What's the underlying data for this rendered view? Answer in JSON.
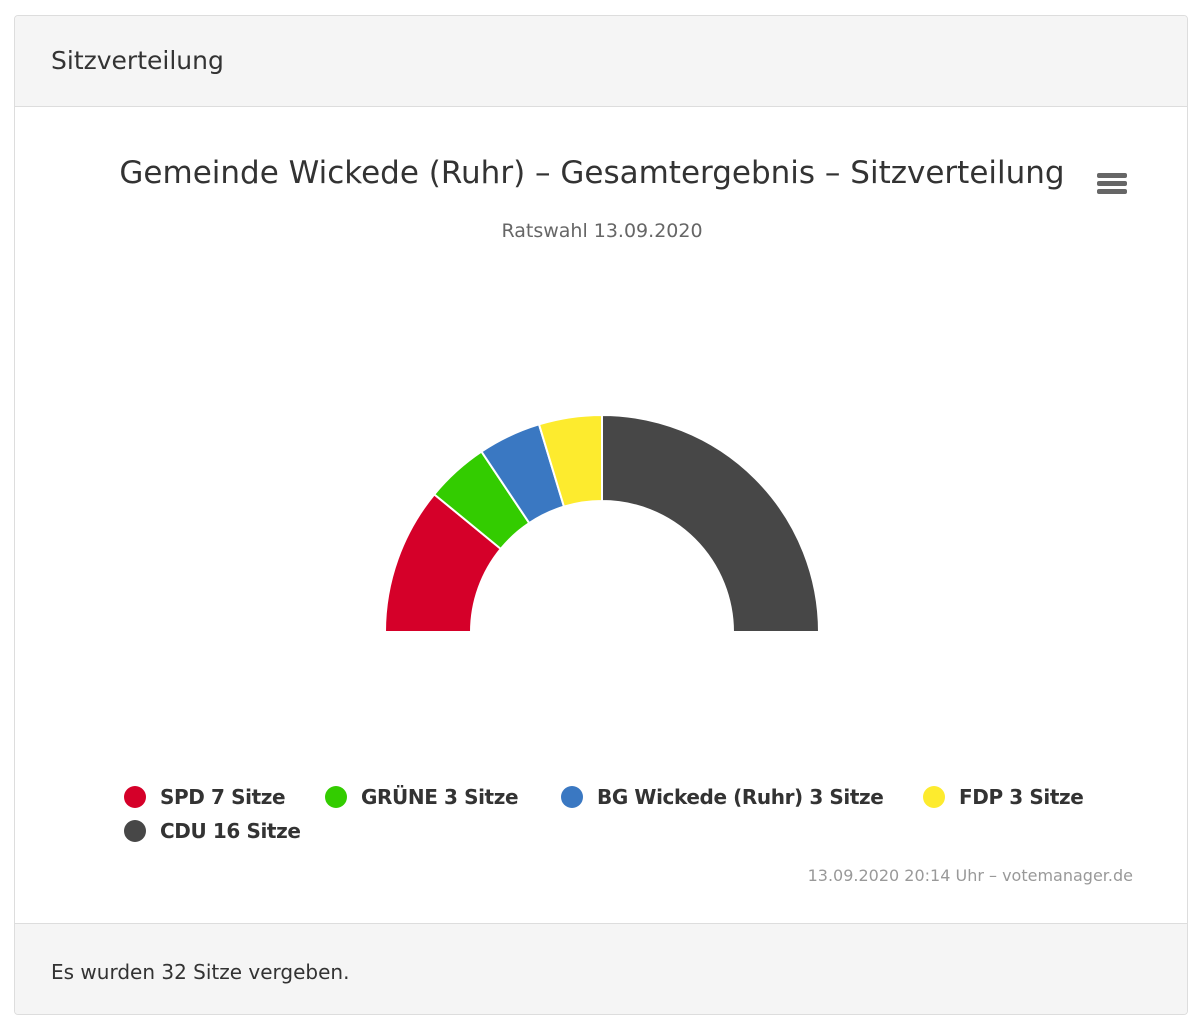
{
  "panel": {
    "heading": "Sitzverteilung",
    "footer": "Es wurden 32 Sitze vergeben."
  },
  "chart_data": {
    "type": "pie",
    "variant": "semicircle-donut",
    "title": "Gemeinde Wickede (Ruhr) – Gesamtergebnis – Sitzverteilung",
    "subtitle": "Ratswahl 13.09.2020",
    "series": [
      {
        "name": "SPD",
        "value": 7,
        "label": "SPD 7 Sitze",
        "color": "#d50029"
      },
      {
        "name": "GRÜNE",
        "value": 3,
        "label": "GRÜNE 3 Sitze",
        "color": "#33cc00"
      },
      {
        "name": "BG Wickede (Ruhr)",
        "value": 3,
        "label": "BG Wickede (Ruhr) 3 Sitze",
        "color": "#3a78c2"
      },
      {
        "name": "FDP",
        "value": 3,
        "label": "FDP 3 Sitze",
        "color": "#fdeb2e"
      },
      {
        "name": "CDU",
        "value": 16,
        "label": "CDU 16 Sitze",
        "color": "#474747"
      }
    ],
    "total": 32,
    "legend_position": "bottom",
    "credits": "13.09.2020 20:14 Uhr – votemanager.de"
  },
  "menu": {
    "icon": "hamburger-menu-icon"
  }
}
